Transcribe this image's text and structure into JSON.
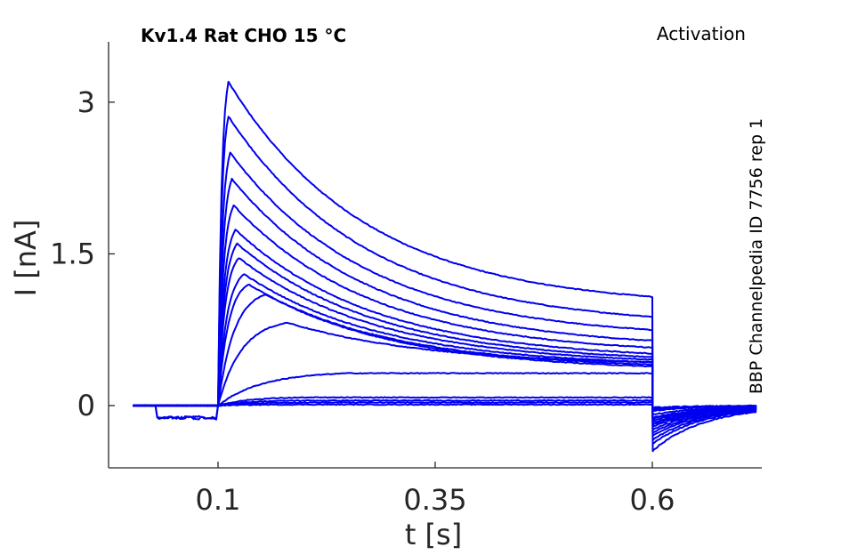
{
  "chart_data": {
    "type": "line",
    "title_left": "Kv1.4  Rat  CHO  15 °C",
    "title_right": "Activation",
    "side_label": "BBP Channelpedia ID 7756 rep 1",
    "xlabel": "t [s]",
    "ylabel": "I [nA]",
    "xlim": [
      0.0,
      0.75
    ],
    "ylim": [
      -0.6,
      3.6
    ],
    "x_ticks": [
      0.1,
      0.35,
      0.6
    ],
    "x_tick_labels": [
      "0.1",
      "0.35",
      "0.6"
    ],
    "y_ticks": [
      0,
      1.5,
      3
    ],
    "y_tick_labels": [
      "0",
      "1.5",
      "3"
    ],
    "grid": false,
    "line_color": "#0000ee",
    "protocol": {
      "pulse_start_s": 0.1,
      "pulse_end_s": 0.6,
      "trace_end_s": 0.72
    },
    "series": [
      {
        "peak": 3.2,
        "t_peak": 0.112,
        "end": 0.97,
        "tail": -0.45
      },
      {
        "peak": 2.86,
        "t_peak": 0.112,
        "end": 0.78,
        "tail": -0.38
      },
      {
        "peak": 2.5,
        "t_peak": 0.114,
        "end": 0.66,
        "tail": -0.34
      },
      {
        "peak": 2.24,
        "t_peak": 0.116,
        "end": 0.56,
        "tail": -0.3
      },
      {
        "peak": 1.98,
        "t_peak": 0.118,
        "end": 0.5,
        "tail": -0.27
      },
      {
        "peak": 1.74,
        "t_peak": 0.12,
        "end": 0.45,
        "tail": -0.24
      },
      {
        "peak": 1.6,
        "t_peak": 0.122,
        "end": 0.42,
        "tail": -0.21
      },
      {
        "peak": 1.46,
        "t_peak": 0.124,
        "end": 0.4,
        "tail": -0.19
      },
      {
        "peak": 1.3,
        "t_peak": 0.13,
        "end": 0.38,
        "tail": -0.17
      },
      {
        "peak": 1.2,
        "t_peak": 0.135,
        "end": 0.36,
        "tail": -0.15
      },
      {
        "peak": 1.1,
        "t_peak": 0.155,
        "end": 0.34,
        "tail": -0.13
      },
      {
        "peak": 0.82,
        "t_peak": 0.18,
        "end": 0.4,
        "tail": -0.12
      },
      {
        "peak": 0.32,
        "t_peak": 0.25,
        "end": 0.26,
        "tail": -0.09
      },
      {
        "peak": 0.08,
        "t_peak": 0.2,
        "end": 0.06,
        "tail": -0.05
      },
      {
        "peak": 0.05,
        "t_peak": 0.2,
        "end": 0.04,
        "tail": -0.04
      },
      {
        "peak": 0.03,
        "t_peak": 0.2,
        "end": 0.02,
        "tail": -0.03
      },
      {
        "peak": 0.01,
        "t_peak": 0.2,
        "end": 0.01,
        "tail": -0.02
      }
    ]
  }
}
